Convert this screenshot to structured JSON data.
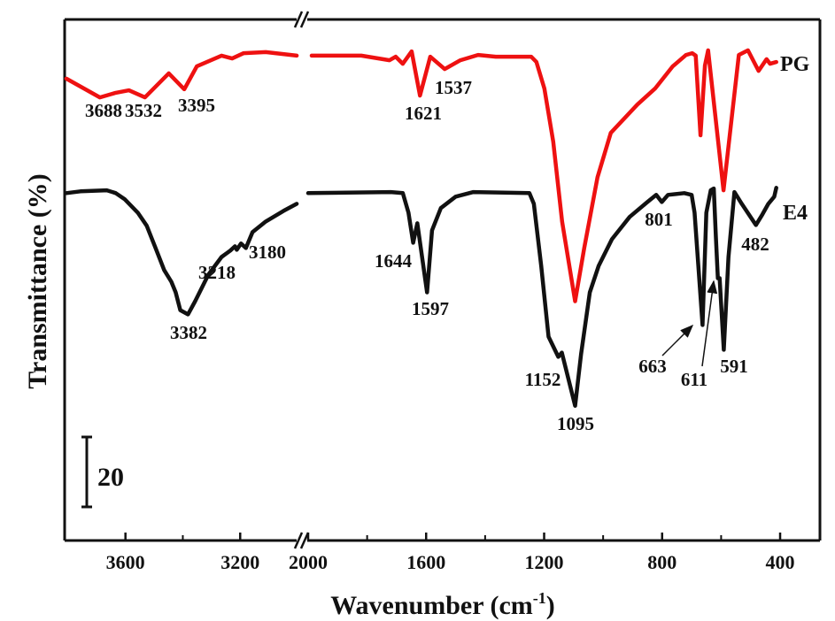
{
  "chart_data": {
    "type": "line",
    "title": "",
    "xlabel": "Wavenumber (cm-1)",
    "xlabel_main": "Wavenumber (cm",
    "xlabel_sup": "-1",
    "xlabel_end": ")",
    "ylabel": "Transmittance (%)",
    "x_axis": "reversed, broken",
    "x_segments": [
      {
        "xlim": [
          3812,
          2994
        ],
        "ticks": [
          3600,
          3200
        ],
        "minor_ticks": [
          3400
        ]
      },
      {
        "xlim": [
          2015,
          265
        ],
        "ticks": [
          2000,
          1600,
          1200,
          800,
          400
        ],
        "minor_ticks": [
          1800,
          1400,
          1000,
          600
        ]
      }
    ],
    "tick_labels": [
      "3600",
      "3200",
      "2000",
      "1600",
      "1200",
      "800",
      "400"
    ],
    "ylim": [
      0,
      147
    ],
    "y_ticks_shown": false,
    "scale_bar": {
      "value": 20,
      "label": "20"
    },
    "grid": false,
    "legend": "inline labels at right end of curves",
    "series": [
      {
        "name": "PG",
        "color": "#ee1111",
        "points": [
          [
            3806,
            130.3
          ],
          [
            3689,
            125
          ],
          [
            3634,
            126.3
          ],
          [
            3588,
            127
          ],
          [
            3532,
            125
          ],
          [
            3449,
            131.8
          ],
          [
            3395,
            127.3
          ],
          [
            3351,
            133.8
          ],
          [
            3265,
            136.8
          ],
          [
            3228,
            136
          ],
          [
            3188,
            137.5
          ],
          [
            3111,
            137.8
          ],
          [
            3003,
            136.8
          ],
          [
            1988,
            136.8
          ],
          [
            1820,
            136.8
          ],
          [
            1724,
            135.5
          ],
          [
            1703,
            136.5
          ],
          [
            1679,
            134.5
          ],
          [
            1649,
            138
          ],
          [
            1621,
            125.5
          ],
          [
            1586,
            136.5
          ],
          [
            1537,
            133
          ],
          [
            1484,
            135.5
          ],
          [
            1424,
            137
          ],
          [
            1364,
            136.5
          ],
          [
            1244,
            136.5
          ],
          [
            1226,
            135
          ],
          [
            1199,
            127.5
          ],
          [
            1169,
            112.5
          ],
          [
            1139,
            90
          ],
          [
            1095,
            67.5
          ],
          [
            1064,
            82.5
          ],
          [
            1019,
            102.5
          ],
          [
            974,
            115
          ],
          [
            884,
            123
          ],
          [
            824,
            127.5
          ],
          [
            764,
            133.8
          ],
          [
            719,
            137
          ],
          [
            698,
            137.5
          ],
          [
            686,
            136.8
          ],
          [
            670,
            114.3
          ],
          [
            655,
            134
          ],
          [
            644,
            138.3
          ],
          [
            592,
            98.8
          ],
          [
            540,
            137
          ],
          [
            509,
            138.3
          ],
          [
            473,
            132.5
          ],
          [
            446,
            135.8
          ],
          [
            434,
            134.5
          ],
          [
            413,
            135
          ]
        ]
      },
      {
        "name": "E4",
        "color": "#111111",
        "points": [
          [
            3806,
            98
          ],
          [
            3757,
            98.5
          ],
          [
            3665,
            98.8
          ],
          [
            3634,
            98
          ],
          [
            3603,
            96.3
          ],
          [
            3557,
            92.5
          ],
          [
            3526,
            88.8
          ],
          [
            3495,
            82.5
          ],
          [
            3465,
            76.3
          ],
          [
            3440,
            73
          ],
          [
            3425,
            70
          ],
          [
            3409,
            65
          ],
          [
            3382,
            63.8
          ],
          [
            3357,
            67.5
          ],
          [
            3311,
            75
          ],
          [
            3265,
            80
          ],
          [
            3234,
            81.8
          ],
          [
            3218,
            83
          ],
          [
            3212,
            82
          ],
          [
            3197,
            83.8
          ],
          [
            3180,
            82.5
          ],
          [
            3157,
            87
          ],
          [
            3111,
            90
          ],
          [
            3049,
            93
          ],
          [
            3003,
            95
          ],
          [
            2000,
            98
          ],
          [
            1720,
            98.3
          ],
          [
            1679,
            98
          ],
          [
            1660,
            92.5
          ],
          [
            1644,
            84
          ],
          [
            1630,
            89.5
          ],
          [
            1597,
            70
          ],
          [
            1580,
            87.5
          ],
          [
            1550,
            93.8
          ],
          [
            1500,
            97
          ],
          [
            1440,
            98.3
          ],
          [
            1250,
            98
          ],
          [
            1235,
            95
          ],
          [
            1210,
            77.5
          ],
          [
            1185,
            57.5
          ],
          [
            1152,
            51.8
          ],
          [
            1140,
            53
          ],
          [
            1095,
            38
          ],
          [
            1075,
            52.5
          ],
          [
            1045,
            70
          ],
          [
            1015,
            77.5
          ],
          [
            970,
            85
          ],
          [
            910,
            91.3
          ],
          [
            850,
            95.5
          ],
          [
            820,
            97.5
          ],
          [
            801,
            95.5
          ],
          [
            780,
            97.5
          ],
          [
            725,
            98
          ],
          [
            700,
            97.5
          ],
          [
            690,
            92.5
          ],
          [
            663,
            60.8
          ],
          [
            650,
            92.5
          ],
          [
            635,
            98.8
          ],
          [
            625,
            99.3
          ],
          [
            618,
            86
          ],
          [
            611,
            74
          ],
          [
            605,
            74
          ],
          [
            591,
            53.8
          ],
          [
            575,
            80
          ],
          [
            555,
            98.3
          ],
          [
            530,
            95
          ],
          [
            482,
            89
          ],
          [
            460,
            92
          ],
          [
            440,
            95
          ],
          [
            420,
            97
          ],
          [
            413,
            99.5
          ]
        ]
      }
    ],
    "annotations": [
      {
        "series": "PG",
        "text": "3688"
      },
      {
        "series": "PG",
        "text": "3532"
      },
      {
        "series": "PG",
        "text": "3395"
      },
      {
        "series": "PG",
        "text": "1621"
      },
      {
        "series": "PG",
        "text": "1537"
      },
      {
        "series": "E4",
        "text": "3382"
      },
      {
        "series": "E4",
        "text": "3218"
      },
      {
        "series": "E4",
        "text": "3180"
      },
      {
        "series": "E4",
        "text": "1644"
      },
      {
        "series": "E4",
        "text": "1597"
      },
      {
        "series": "E4",
        "text": "1152"
      },
      {
        "series": "E4",
        "text": "1095"
      },
      {
        "series": "E4",
        "text": "801"
      },
      {
        "series": "E4",
        "text": "663",
        "arrow": true
      },
      {
        "series": "E4",
        "text": "611",
        "arrow": true
      },
      {
        "series": "E4",
        "text": "591"
      },
      {
        "series": "E4",
        "text": "482"
      }
    ]
  }
}
